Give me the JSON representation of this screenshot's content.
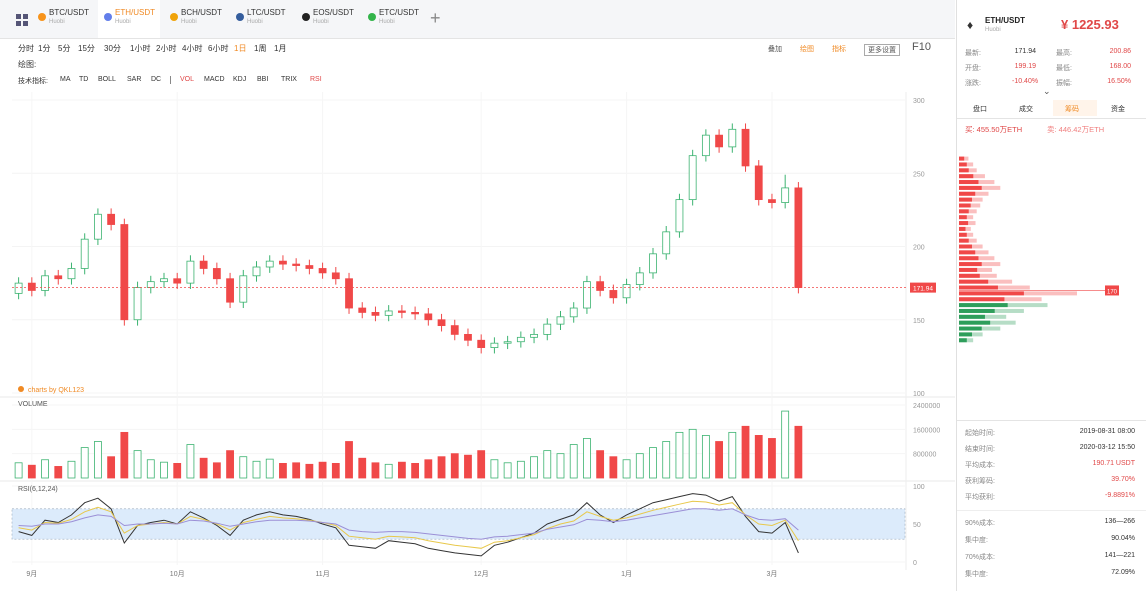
{
  "ui": {
    "tabs": [
      {
        "pair": "BTC/USDT",
        "exchange": "Huobi",
        "color": "#f7931a"
      },
      {
        "pair": "ETH/USDT",
        "exchange": "Huobi",
        "color": "#627eea"
      },
      {
        "pair": "BCH/USDT",
        "exchange": "Huobi",
        "color": "#f0a30a"
      },
      {
        "pair": "LTC/USDT",
        "exchange": "Huobi",
        "color": "#345d9d"
      },
      {
        "pair": "EOS/USDT",
        "exchange": "Huobi",
        "color": "#222222"
      },
      {
        "pair": "ETC/USDT",
        "exchange": "Huobi",
        "color": "#33b44a"
      }
    ],
    "periods": [
      "分时",
      "1分",
      "5分",
      "15分",
      "30分",
      "1小时",
      "2小时",
      "4小时",
      "6小时",
      "1日",
      "1周",
      "1月"
    ],
    "tools_right": [
      "叠加",
      "绘图",
      "指标",
      "更多设置",
      "F10"
    ],
    "draw_label": "绘图:",
    "indicator_label": "技术指标:",
    "indicators_main": [
      "MA",
      "TD",
      "BOLL",
      "SAR",
      "DC"
    ],
    "indicators_sub": [
      "VOL",
      "MACD",
      "KDJ",
      "BBI",
      "TRIX",
      "RSI"
    ],
    "watermark": "charts by QKL123",
    "sidebar": {
      "pair": "ETH/USDT",
      "exchange": "Huobi",
      "price": "¥ 1225.93",
      "stats": [
        [
          "最新:",
          "171.94",
          "最高:",
          "200.86"
        ],
        [
          "开盘:",
          "199.19",
          "最低:",
          "168.00"
        ],
        [
          "涨跌:",
          "-10.40%",
          "振幅:",
          "16.50%"
        ]
      ],
      "tabs": [
        "盘口",
        "成交",
        "筹码",
        "资金"
      ],
      "buy": "买: 455.50万ETH",
      "sell": "卖: 446.42万ETH",
      "summary": [
        [
          "起始时间:",
          "2019-08-31 08:00"
        ],
        [
          "结束时间:",
          "2020-03-12 15:50"
        ],
        [
          "平均成本:",
          "190.71 USDT"
        ],
        [
          "获利筹码:",
          "39.70%"
        ],
        [
          "平均获利:",
          "-9.8891%"
        ]
      ],
      "summary2": [
        [
          "90%成本:",
          "136—266"
        ],
        [
          "集中度:",
          "90.04%"
        ],
        [
          "70%成本:",
          "141—221"
        ],
        [
          "集中度:",
          "72.09%"
        ]
      ]
    }
  },
  "chart_data": [
    {
      "type": "candlestick",
      "up_color": "#3cb371",
      "down_color": "#f04848",
      "grid": true,
      "categories": [
        null,
        "9月",
        null,
        null,
        null,
        null,
        null,
        null,
        null,
        null,
        null,
        null,
        "10月",
        null,
        null,
        null,
        null,
        null,
        null,
        null,
        null,
        null,
        null,
        "11月",
        null,
        null,
        null,
        null,
        null,
        null,
        null,
        null,
        null,
        null,
        null,
        "12月",
        null,
        null,
        null,
        null,
        null,
        null,
        null,
        null,
        null,
        null,
        "1月",
        null,
        null,
        null,
        null,
        null,
        null,
        null,
        null,
        null,
        null,
        "3月",
        null,
        null
      ],
      "open": [
        168,
        175,
        170,
        180,
        178,
        185,
        205,
        222,
        215,
        150,
        172,
        176,
        178,
        175,
        190,
        185,
        178,
        162,
        180,
        186,
        190,
        188,
        187,
        185,
        182,
        178,
        158,
        155,
        153,
        156,
        155,
        154,
        150,
        146,
        140,
        136,
        131,
        134,
        135,
        138,
        140,
        147,
        152,
        158,
        176,
        170,
        165,
        174,
        182,
        195,
        210,
        232,
        262,
        276,
        268,
        280,
        255,
        232,
        230,
        240
      ],
      "high": [
        179,
        179,
        184,
        184,
        189,
        209,
        226,
        226,
        219,
        176,
        180,
        182,
        182,
        194,
        194,
        189,
        182,
        184,
        190,
        194,
        194,
        192,
        191,
        189,
        186,
        182,
        162,
        159,
        160,
        160,
        159,
        158,
        154,
        150,
        144,
        140,
        138,
        139,
        142,
        144,
        151,
        156,
        162,
        180,
        180,
        174,
        178,
        186,
        199,
        214,
        236,
        266,
        280,
        280,
        284,
        284,
        259,
        236,
        249,
        244
      ],
      "low": [
        164,
        166,
        166,
        174,
        174,
        181,
        201,
        211,
        146,
        146,
        168,
        172,
        171,
        171,
        181,
        174,
        158,
        158,
        176,
        182,
        184,
        183,
        181,
        178,
        174,
        154,
        151,
        149,
        149,
        151,
        150,
        146,
        142,
        136,
        132,
        127,
        127,
        130,
        131,
        134,
        136,
        143,
        148,
        154,
        166,
        161,
        161,
        170,
        178,
        191,
        206,
        228,
        258,
        264,
        264,
        251,
        228,
        226,
        226,
        168
      ],
      "close": [
        175,
        170,
        180,
        178,
        185,
        205,
        222,
        215,
        150,
        172,
        176,
        178,
        175,
        190,
        185,
        178,
        162,
        180,
        186,
        190,
        188,
        187,
        185,
        182,
        178,
        158,
        155,
        153,
        156,
        155,
        154,
        150,
        146,
        140,
        136,
        131,
        134,
        135,
        138,
        140,
        147,
        152,
        158,
        176,
        170,
        165,
        174,
        182,
        195,
        210,
        232,
        262,
        276,
        268,
        280,
        255,
        232,
        230,
        240,
        171.94
      ],
      "ylim": [
        100,
        300
      ],
      "yticks": [
        100,
        150,
        200,
        250,
        300
      ],
      "volume": {
        "title": "VOLUME",
        "values": [
          500000,
          420000,
          600000,
          380000,
          550000,
          1000000,
          1200000,
          700000,
          1500000,
          900000,
          600000,
          520000,
          480000,
          1100000,
          650000,
          500000,
          900000,
          700000,
          550000,
          620000,
          480000,
          500000,
          450000,
          520000,
          480000,
          1200000,
          650000,
          500000,
          450000,
          520000,
          480000,
          600000,
          700000,
          800000,
          750000,
          900000,
          600000,
          500000,
          550000,
          700000,
          900000,
          800000,
          1100000,
          1300000,
          900000,
          700000,
          600000,
          800000,
          1000000,
          1200000,
          1500000,
          1600000,
          1400000,
          1200000,
          1500000,
          1700000,
          1400000,
          1300000,
          2200000,
          1700000
        ],
        "ylim": [
          0,
          2400000
        ],
        "yticks": [
          800000,
          1600000,
          2400000
        ]
      },
      "rsi": {
        "title": "RSI(6,12,24)",
        "ylim": [
          0,
          100
        ],
        "yticks": [
          0,
          50,
          100
        ],
        "band": [
          30,
          70
        ],
        "band_color": "#dcebfb",
        "series": [
          {
            "color": "#333333",
            "values": [
              40,
              35,
              55,
              52,
              62,
              78,
              84,
              70,
              25,
              48,
              52,
              55,
              50,
              66,
              58,
              48,
              35,
              55,
              62,
              66,
              62,
              60,
              56,
              50,
              45,
              22,
              20,
              18,
              28,
              26,
              24,
              18,
              15,
              12,
              10,
              8,
              22,
              26,
              32,
              38,
              50,
              56,
              62,
              78,
              62,
              52,
              62,
              70,
              78,
              82,
              86,
              90,
              88,
              80,
              86,
              60,
              40,
              38,
              52,
              12
            ]
          },
          {
            "color": "#e8c84a",
            "values": [
              45,
              42,
              52,
              51,
              56,
              66,
              72,
              66,
              38,
              48,
              50,
              52,
              50,
              60,
              56,
              50,
              42,
              52,
              56,
              60,
              58,
              57,
              55,
              52,
              48,
              34,
              32,
              30,
              34,
              33,
              32,
              28,
              25,
              22,
              20,
              18,
              26,
              28,
              32,
              36,
              44,
              50,
              54,
              66,
              60,
              55,
              58,
              63,
              68,
              72,
              76,
              80,
              79,
              75,
              78,
              62,
              50,
              48,
              55,
              28
            ]
          },
          {
            "color": "#9b8fd6",
            "values": [
              48,
              47,
              50,
              50,
              53,
              58,
              62,
              60,
              48,
              50,
              50,
              51,
              50,
              55,
              54,
              51,
              47,
              50,
              53,
              55,
              55,
              55,
              54,
              52,
              50,
              42,
              40,
              39,
              40,
              40,
              39,
              37,
              35,
              33,
              31,
              30,
              33,
              34,
              36,
              38,
              43,
              46,
              49,
              56,
              55,
              53,
              55,
              58,
              61,
              64,
              67,
              70,
              70,
              68,
              70,
              62,
              56,
              55,
              57,
              42
            ]
          }
        ]
      }
    },
    {
      "type": "chip-distribution",
      "ylim": [
        100,
        300
      ],
      "xlim": [
        0,
        100
      ],
      "marker": 170,
      "x": [
        260,
        256,
        252,
        248,
        244,
        240,
        236,
        232,
        228,
        224,
        220,
        216,
        212,
        208,
        204,
        200,
        196,
        192,
        188,
        184,
        180,
        176,
        172,
        168,
        164,
        160,
        156,
        152,
        148,
        144,
        140,
        136
      ],
      "series": [
        {
          "color": "#f04848",
          "values": [
            8,
            12,
            15,
            22,
            30,
            35,
            25,
            20,
            18,
            15,
            12,
            14,
            10,
            12,
            15,
            20,
            25,
            30,
            35,
            28,
            32,
            45,
            60,
            100,
            70,
            null,
            null,
            null,
            null,
            null,
            null,
            null
          ]
        },
        {
          "color": "#2e9e5b",
          "values": [
            null,
            null,
            null,
            null,
            null,
            null,
            null,
            null,
            null,
            null,
            null,
            null,
            null,
            null,
            null,
            null,
            null,
            null,
            null,
            null,
            null,
            null,
            null,
            null,
            null,
            75,
            55,
            40,
            48,
            35,
            20,
            12
          ]
        }
      ]
    }
  ]
}
